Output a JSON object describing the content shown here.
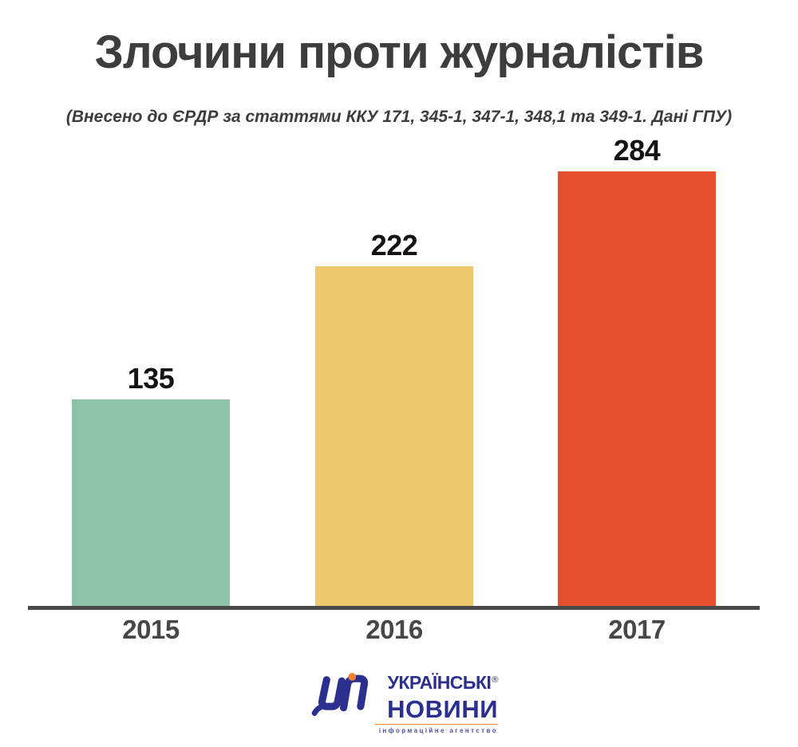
{
  "title": "Злочини проти журналістів",
  "subtitle": "(Внесено до ЄРДР за статтями ККУ 171, 345-1, 347-1, 348,1 та 349-1. Дані ГПУ)",
  "chart_data": {
    "type": "bar",
    "categories": [
      "2015",
      "2016",
      "2017"
    ],
    "values": [
      135,
      222,
      284
    ],
    "colors": [
      "#8EC3A7",
      "#EEC86C",
      "#E2502D"
    ],
    "title": "Злочини проти журналістів",
    "xlabel": "",
    "ylabel": "",
    "ylim": [
      0,
      300
    ],
    "grid": false,
    "legend": "none",
    "value_labels": true,
    "axis_color": "#4A4A4C",
    "value_label_color": "#141414",
    "tick_label_color": "#474747"
  },
  "footer": {
    "logo_line1": "УКРАЇНСЬКІ",
    "logo_registered": "®",
    "logo_line2": "НОВИНИ",
    "logo_tagline": "інформаційне агентство",
    "brand_blue": "#2B2F90",
    "brand_orange": "#F08232"
  }
}
